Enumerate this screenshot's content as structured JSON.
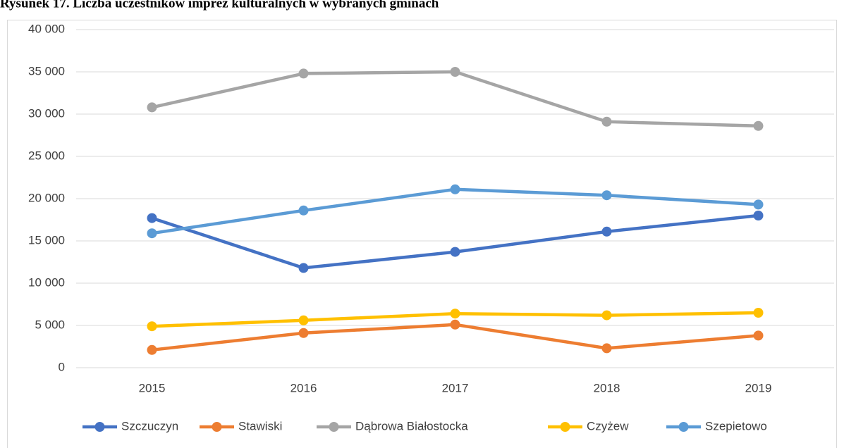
{
  "chart_data": {
    "type": "line",
    "title": "Rysunek 17. Liczba uczestników imprez kulturalnych w wybranych gminach",
    "categories": [
      "2015",
      "2016",
      "2017",
      "2018",
      "2019"
    ],
    "series": [
      {
        "name": "Szczuczyn",
        "color": "#4472c4",
        "values": [
          17700,
          11800,
          13700,
          16100,
          18000
        ]
      },
      {
        "name": "Stawiski",
        "color": "#ed7d31",
        "values": [
          2100,
          4100,
          5100,
          2300,
          3800
        ]
      },
      {
        "name": "Dąbrowa Białostocka",
        "color": "#a5a5a5",
        "values": [
          30800,
          34800,
          35000,
          29100,
          28600
        ]
      },
      {
        "name": "Czyżew",
        "color": "#ffc000",
        "values": [
          4900,
          5600,
          6400,
          6200,
          6500
        ]
      },
      {
        "name": "Szepietowo",
        "color": "#5b9bd5",
        "values": [
          15900,
          18600,
          21100,
          20400,
          19300
        ]
      }
    ],
    "ylim": [
      0,
      40000
    ],
    "yticks": [
      0,
      {
        "value": 5000,
        "label": "5 000"
      },
      {
        "value": 10000,
        "label": "10 000"
      },
      {
        "value": 15000,
        "label": "15 000"
      },
      {
        "value": 20000,
        "label": "20 000"
      },
      {
        "value": 25000,
        "label": "25 000"
      },
      {
        "value": 30000,
        "label": "30 000"
      },
      {
        "value": 35000,
        "label": "35 000"
      },
      {
        "value": 40000,
        "label": "40 000"
      }
    ],
    "grid": true,
    "legend": "bottom"
  }
}
